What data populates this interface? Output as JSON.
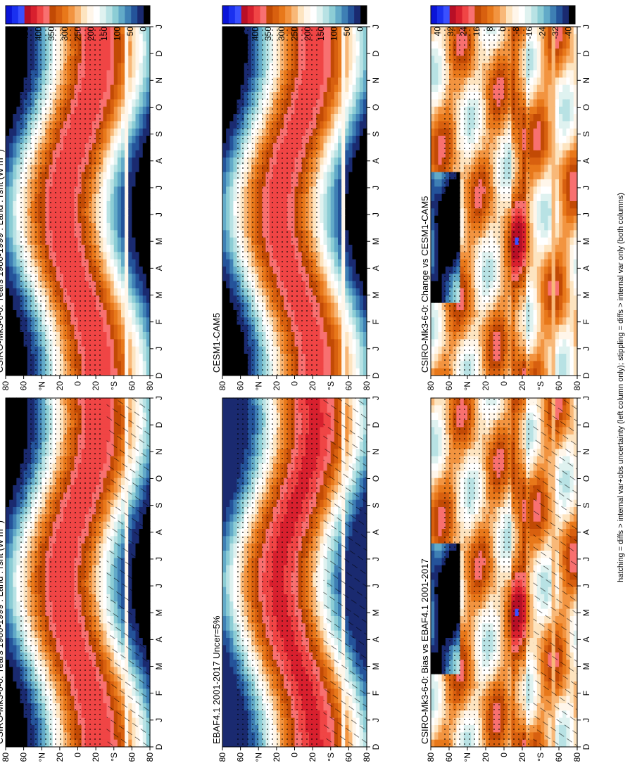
{
  "footer": "hatching = diffs > internal var+obs uncertainty (left column only); stippling = diffs > internal var only (both columns)",
  "months": [
    "J",
    "F",
    "M",
    "A",
    "M",
    "J",
    "J",
    "A",
    "S",
    "O",
    "N",
    "D",
    "J"
  ],
  "month_axis_start": "D",
  "lat_labels": [
    "80",
    "60",
    "°N",
    "20",
    "0",
    "20",
    "°S",
    "60",
    "80"
  ],
  "colorbar_absolute": {
    "labels": [
      "500",
      "450",
      "400",
      "350",
      "300",
      "250",
      "200",
      "150",
      "100",
      "50",
      "0"
    ],
    "colors": [
      "#0a14d8",
      "#1a30f0",
      "#3a50ff",
      "#b80f26",
      "#d8202e",
      "#f04545",
      "#f87070",
      "#c24a05",
      "#d8600f",
      "#e8781a",
      "#f29440",
      "#f8b878",
      "#fde4c0",
      "#fff6ea",
      "#ffffff",
      "#dff2f0",
      "#b8e2e4",
      "#8ccdd5",
      "#62aac8",
      "#3e7fb4",
      "#24539a",
      "#1a2a70",
      "#000000"
    ]
  },
  "colorbar_difference": {
    "labels": [
      "40",
      "32",
      "24",
      "16",
      "8",
      "0",
      "-8",
      "-16",
      "-24",
      "-32",
      "-40"
    ],
    "colors": [
      "#0a14d8",
      "#1a30f0",
      "#3a50ff",
      "#b80f26",
      "#d8202e",
      "#f04545",
      "#f87070",
      "#c24a05",
      "#d8600f",
      "#e8781a",
      "#f29440",
      "#f8b878",
      "#fde4c0",
      "#fff6ea",
      "#ffffff",
      "#dff2f0",
      "#b8e2e4",
      "#8ccdd5",
      "#62aac8",
      "#3e7fb4",
      "#24539a",
      "#1a2a70",
      "#000000"
    ]
  },
  "chart_data": [
    {
      "type": "heatmap",
      "title": "CSIRO-Mk3-6-0: Years 1980-1999 : Land : rsnt (W m",
      "title_sup": "-2",
      "title_tail": ")",
      "xlabel": "month",
      "ylabel": "latitude",
      "units": "W m-2",
      "range": [
        0,
        500
      ],
      "variable": "rsnt",
      "hatching": true,
      "stippling": true
    },
    {
      "type": "heatmap",
      "title": "CSIRO-Mk3-6-0: Years 1980-1999 : Land : rsnt (W m",
      "title_sup": "-2",
      "title_tail": ")",
      "xlabel": "month",
      "ylabel": "latitude",
      "units": "W m-2",
      "range": [
        0,
        500
      ],
      "variable": "rsnt",
      "hatching": false,
      "stippling": true
    },
    {
      "type": "heatmap",
      "title": "EBAF4.1 2001-2017 Uncer=5%",
      "title_sup": "",
      "title_tail": "",
      "xlabel": "month",
      "ylabel": "latitude",
      "units": "W m-2",
      "range": [
        0,
        500
      ],
      "variable": "rsnt",
      "hatching": true,
      "stippling": true
    },
    {
      "type": "heatmap",
      "title": "CESM1-CAM5",
      "title_sup": "",
      "title_tail": "",
      "xlabel": "month",
      "ylabel": "latitude",
      "units": "W m-2",
      "range": [
        0,
        500
      ],
      "variable": "rsnt",
      "hatching": false,
      "stippling": true
    },
    {
      "type": "heatmap",
      "title": "CSIRO-Mk3-6-0: Bias vs EBAF4.1 2001-2017",
      "title_sup": "",
      "title_tail": "",
      "xlabel": "month",
      "ylabel": "latitude",
      "units": "W m-2",
      "range": [
        -40,
        40
      ],
      "variable": "rsnt difference",
      "hatching": true,
      "stippling": true
    },
    {
      "type": "heatmap",
      "title": "CSIRO-Mk3-6-0: Change vs CESM1-CAM5",
      "title_sup": "",
      "title_tail": "",
      "xlabel": "month",
      "ylabel": "latitude",
      "units": "W m-2",
      "range": [
        -40,
        40
      ],
      "variable": "rsnt difference",
      "hatching": false,
      "stippling": true
    }
  ]
}
